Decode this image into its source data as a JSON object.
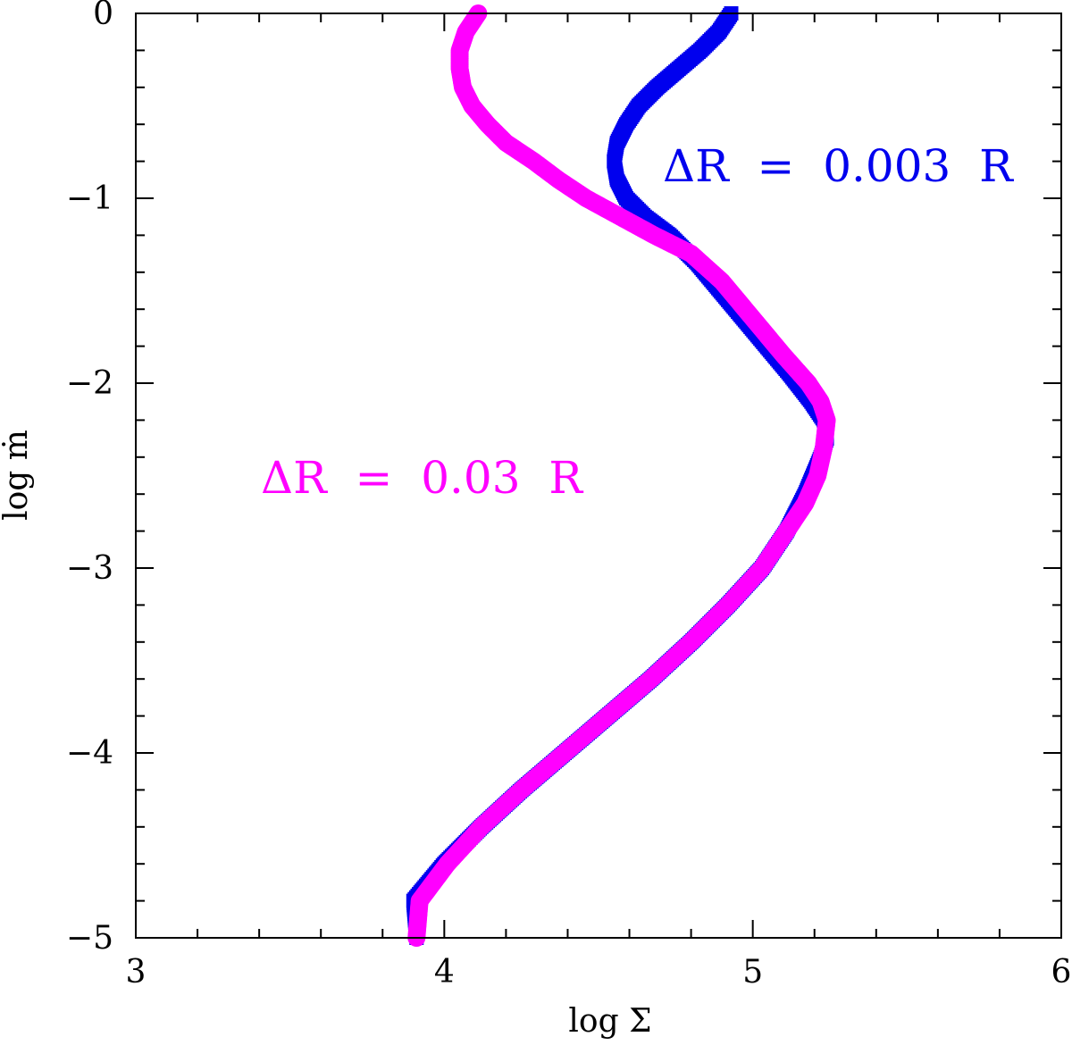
{
  "chart_data": {
    "type": "scatter",
    "title": "",
    "xlabel": "log Σ",
    "ylabel": "log ṁ",
    "xlim": [
      3,
      6
    ],
    "ylim": [
      -5,
      0
    ],
    "xticks": [
      "3",
      "4",
      "5",
      "6"
    ],
    "yticks": [
      "0",
      "−1",
      "−2",
      "−3",
      "−4",
      "−5"
    ],
    "grid": false,
    "legend": "none",
    "annotations": [
      {
        "text": "ΔR  =  0.003  R",
        "color": "#0000ee"
      },
      {
        "text": "ΔR  =  0.03  R",
        "color": "#ff00ff"
      }
    ],
    "series": [
      {
        "name": "ΔR  =  0.003  R",
        "color": "#0000ee",
        "marker": "square",
        "points": [
          [
            4.93,
            0.0
          ],
          [
            4.89,
            -0.1
          ],
          [
            4.83,
            -0.2
          ],
          [
            4.76,
            -0.3
          ],
          [
            4.69,
            -0.4
          ],
          [
            4.63,
            -0.5
          ],
          [
            4.59,
            -0.6
          ],
          [
            4.56,
            -0.7
          ],
          [
            4.55,
            -0.8
          ],
          [
            4.56,
            -0.9
          ],
          [
            4.59,
            -1.0
          ],
          [
            4.65,
            -1.1
          ],
          [
            4.73,
            -1.2
          ],
          [
            4.82,
            -1.35
          ],
          [
            4.92,
            -1.55
          ],
          [
            5.02,
            -1.75
          ],
          [
            5.12,
            -1.95
          ],
          [
            5.19,
            -2.1
          ],
          [
            5.23,
            -2.2
          ],
          [
            5.24,
            -2.3
          ],
          [
            5.22,
            -2.4
          ],
          [
            5.17,
            -2.6
          ],
          [
            5.11,
            -2.8
          ],
          [
            5.03,
            -3.0
          ],
          [
            4.92,
            -3.2
          ],
          [
            4.8,
            -3.4
          ],
          [
            4.67,
            -3.6
          ],
          [
            4.53,
            -3.8
          ],
          [
            4.39,
            -4.0
          ],
          [
            4.25,
            -4.2
          ],
          [
            4.12,
            -4.4
          ],
          [
            4.0,
            -4.6
          ],
          [
            3.9,
            -4.8
          ],
          [
            3.91,
            -5.0
          ]
        ]
      },
      {
        "name": "ΔR  =  0.03  R",
        "color": "#ff00ff",
        "marker": "circle",
        "points": [
          [
            4.11,
            0.0
          ],
          [
            4.07,
            -0.1
          ],
          [
            4.05,
            -0.2
          ],
          [
            4.05,
            -0.3
          ],
          [
            4.06,
            -0.4
          ],
          [
            4.09,
            -0.5
          ],
          [
            4.14,
            -0.6
          ],
          [
            4.2,
            -0.7
          ],
          [
            4.29,
            -0.8
          ],
          [
            4.37,
            -0.9
          ],
          [
            4.46,
            -1.0
          ],
          [
            4.57,
            -1.1
          ],
          [
            4.68,
            -1.2
          ],
          [
            4.8,
            -1.3
          ],
          [
            4.9,
            -1.45
          ],
          [
            5.0,
            -1.65
          ],
          [
            5.1,
            -1.85
          ],
          [
            5.18,
            -2.0
          ],
          [
            5.22,
            -2.1
          ],
          [
            5.24,
            -2.2
          ],
          [
            5.23,
            -2.35
          ],
          [
            5.21,
            -2.5
          ],
          [
            5.17,
            -2.65
          ],
          [
            5.11,
            -2.8
          ],
          [
            5.03,
            -3.0
          ],
          [
            4.92,
            -3.2
          ],
          [
            4.8,
            -3.4
          ],
          [
            4.67,
            -3.6
          ],
          [
            4.53,
            -3.8
          ],
          [
            4.39,
            -4.0
          ],
          [
            4.25,
            -4.2
          ],
          [
            4.12,
            -4.4
          ],
          [
            4.01,
            -4.6
          ],
          [
            3.92,
            -4.8
          ],
          [
            3.91,
            -5.0
          ]
        ]
      }
    ]
  }
}
